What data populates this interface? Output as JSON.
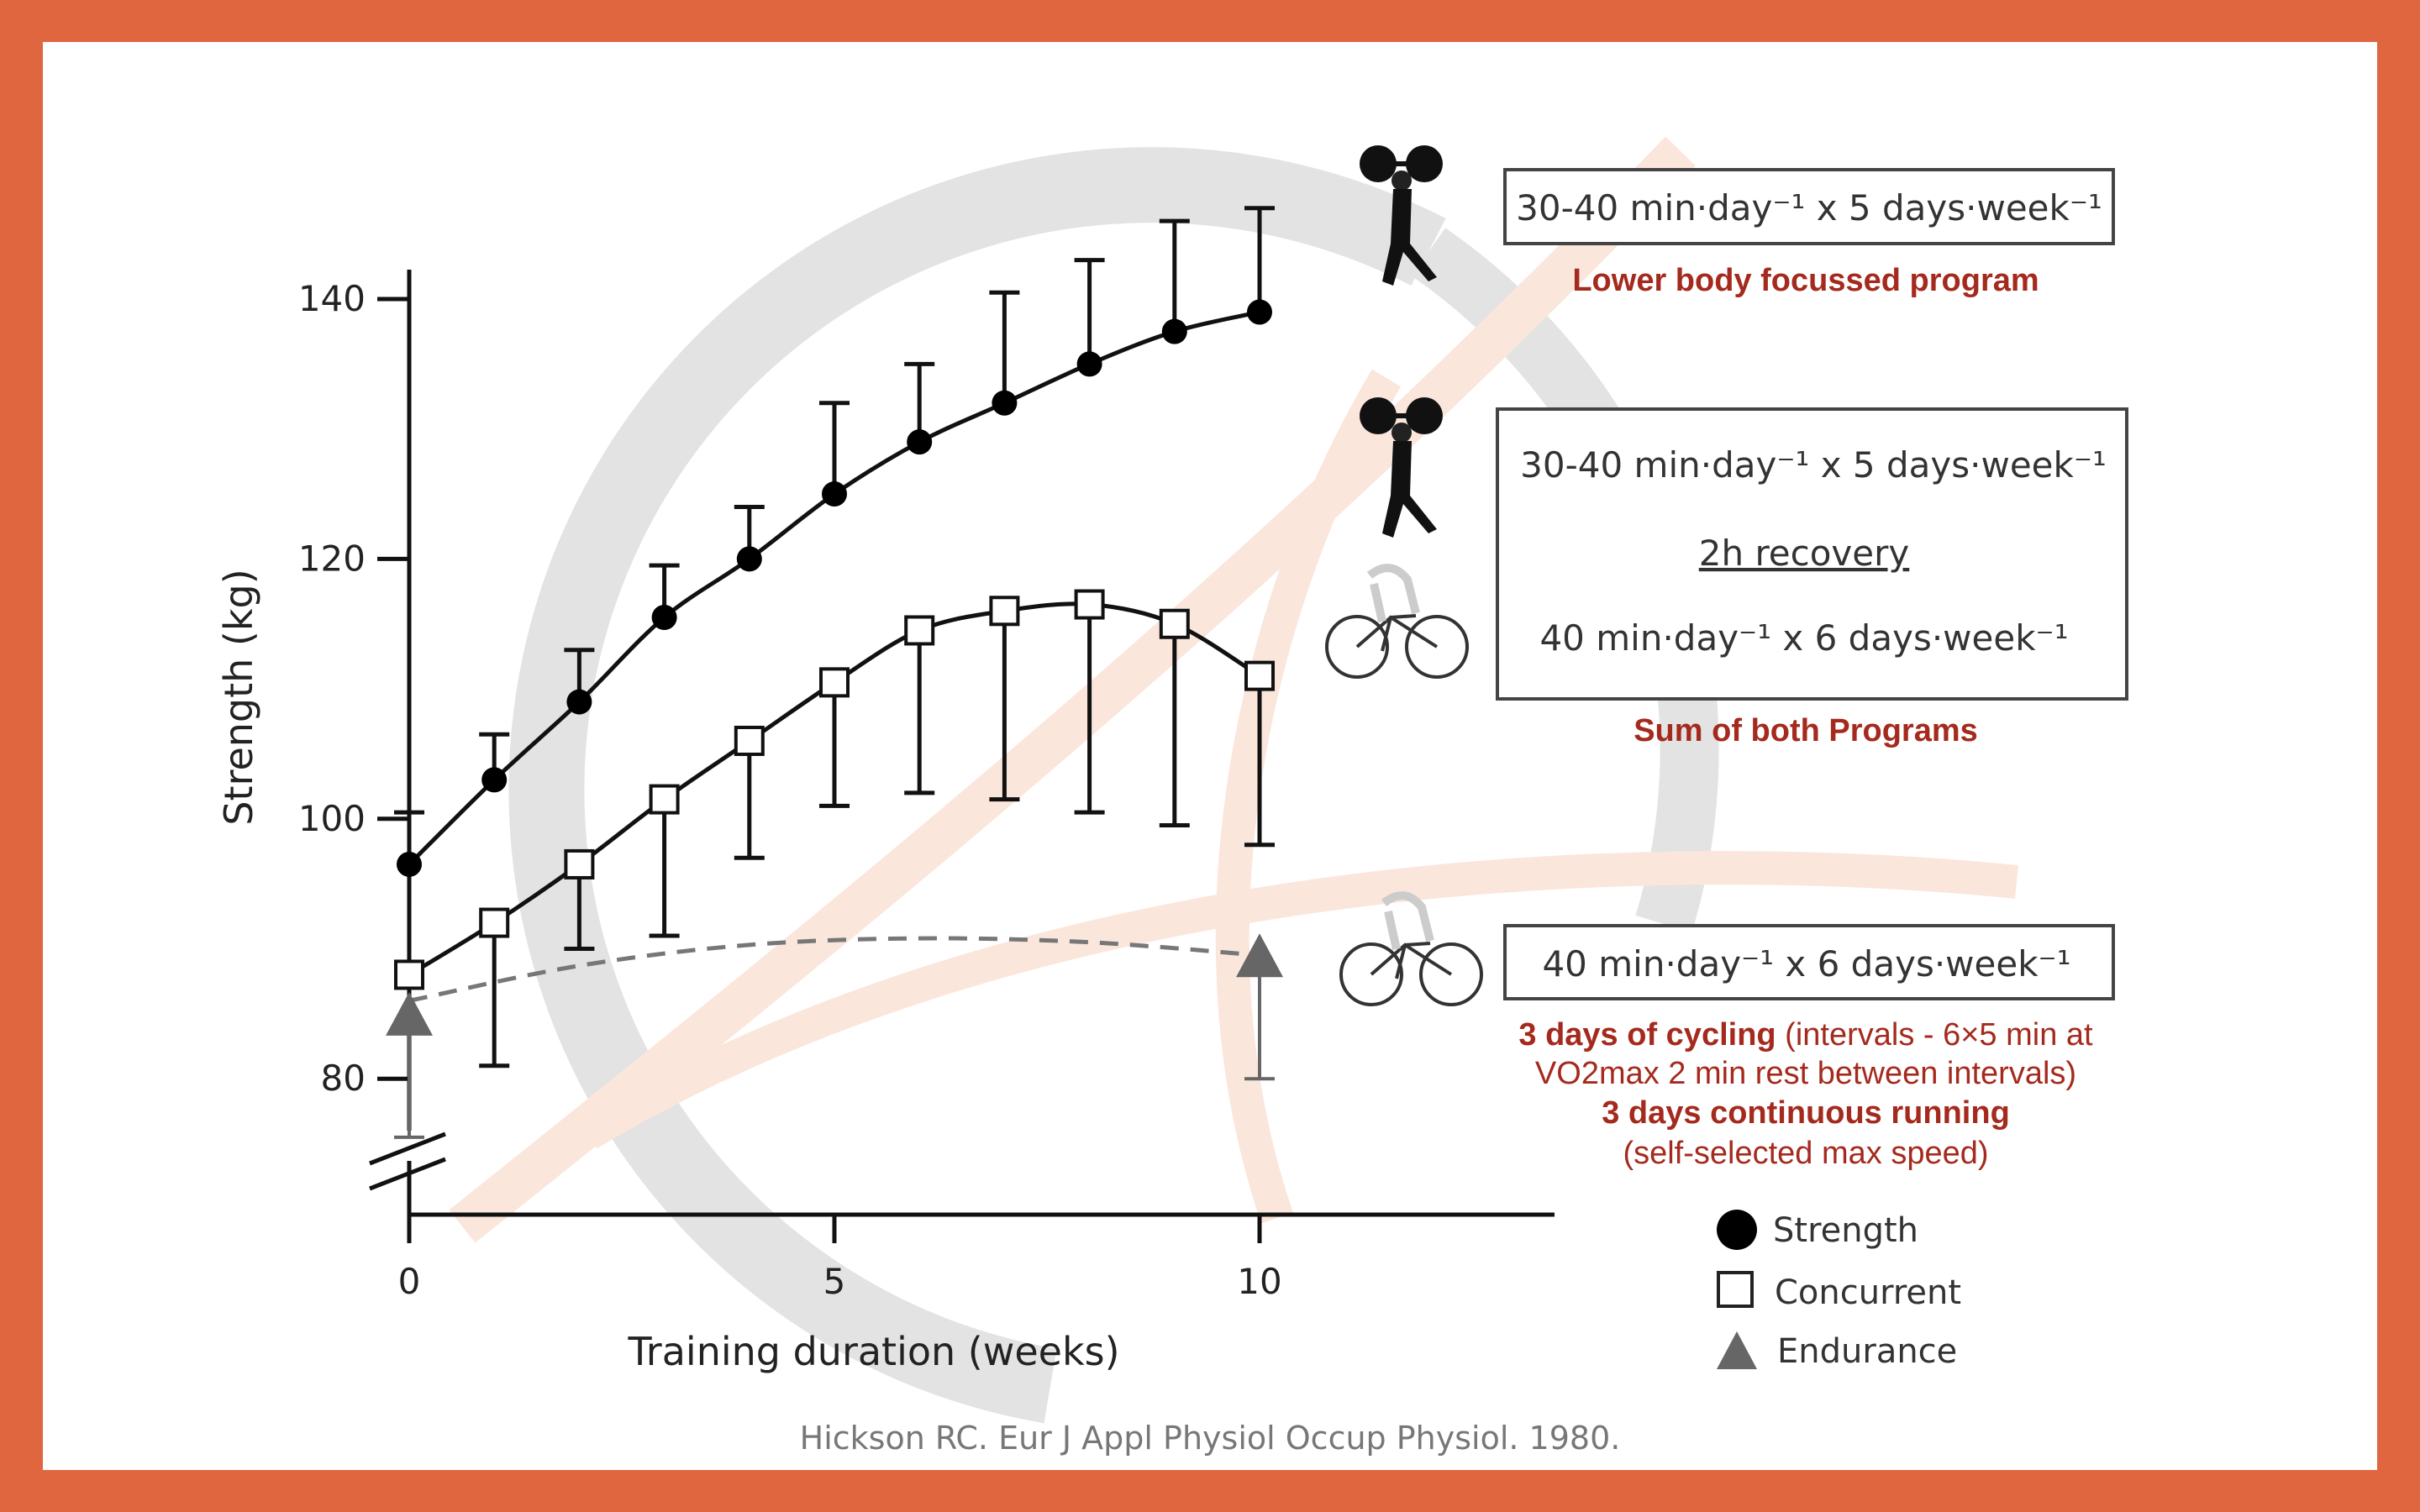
{
  "chart_data": {
    "type": "line",
    "xlabel": "Training duration (weeks)",
    "ylabel": "Strength (kg)",
    "x_ticks": [
      "0",
      "5",
      "10"
    ],
    "y_ticks": [
      "80",
      "100",
      "120",
      "140"
    ],
    "xlim": [
      0,
      14
    ],
    "ylim": [
      72,
      142
    ],
    "axis_break": "y-axis below 80",
    "grid": false,
    "legend_placement": "bottom-right",
    "series": [
      {
        "name": "Strength",
        "marker": "filled-circle",
        "x": [
          0,
          1,
          2,
          3,
          4,
          5,
          6,
          7,
          8,
          9,
          10
        ],
        "values": [
          96.5,
          103,
          109,
          115.5,
          120,
          125,
          129,
          132,
          135,
          137.5,
          139
        ],
        "error_upper": [
          100.5,
          106.5,
          113,
          119.5,
          124,
          132,
          135,
          140.5,
          143,
          146,
          147
        ]
      },
      {
        "name": "Concurrent",
        "marker": "open-square",
        "x": [
          0,
          1,
          2,
          3,
          4,
          5,
          6,
          7,
          8,
          9,
          10
        ],
        "values": [
          88,
          92,
          96.5,
          101.5,
          106,
          110.5,
          114.5,
          116,
          116.5,
          115,
          111
        ],
        "error_lower": [
          null,
          81,
          90,
          91,
          97,
          101,
          102,
          101.5,
          100.5,
          99.5,
          98
        ]
      },
      {
        "name": "Endurance",
        "marker": "triangle",
        "x": [
          0,
          10
        ],
        "values": [
          85,
          89.5
        ],
        "error_lower": [
          75.5,
          80
        ],
        "trend_dashed": {
          "x": [
            0,
            2,
            4,
            6,
            8,
            10
          ],
          "values": [
            86,
            88.7,
            90.3,
            90.8,
            90.5,
            89.5
          ]
        }
      }
    ]
  },
  "annotations": {
    "strength_box": "30-40 min·day⁻¹ x 5 days·week⁻¹",
    "strength_label": "Lower body focussed program",
    "concurrent_box_line1": "30-40 min·day⁻¹ x 5 days·week⁻¹",
    "concurrent_box_line2": "2h recovery",
    "concurrent_box_line3": "40 min·day⁻¹ x 6 days·week⁻¹",
    "concurrent_label": "Sum of both Programs",
    "endurance_box": "40 min·day⁻¹ x 6 days·week⁻¹",
    "endurance_line1_bold": "3 days of cycling",
    "endurance_line1_rest": " (intervals - 6×5 min at",
    "endurance_line2": "VO2max 2 min rest between intervals)",
    "endurance_line3": "3 days continuous running",
    "endurance_line4": "(self-selected max speed)"
  },
  "icons": [
    "weightlifter-icon",
    "weightlifter-icon",
    "cyclist-icon",
    "cyclist-icon"
  ],
  "citation": "Hickson RC. Eur J Appl Physiol Occup Physiol. 1980.",
  "colors": {
    "frame": "#E0663F",
    "annotation_red": "#A52A1E",
    "endurance_gray": "#666666",
    "watermark_gray": "#E3E3E3",
    "watermark_peach": "#FBE6DC"
  }
}
